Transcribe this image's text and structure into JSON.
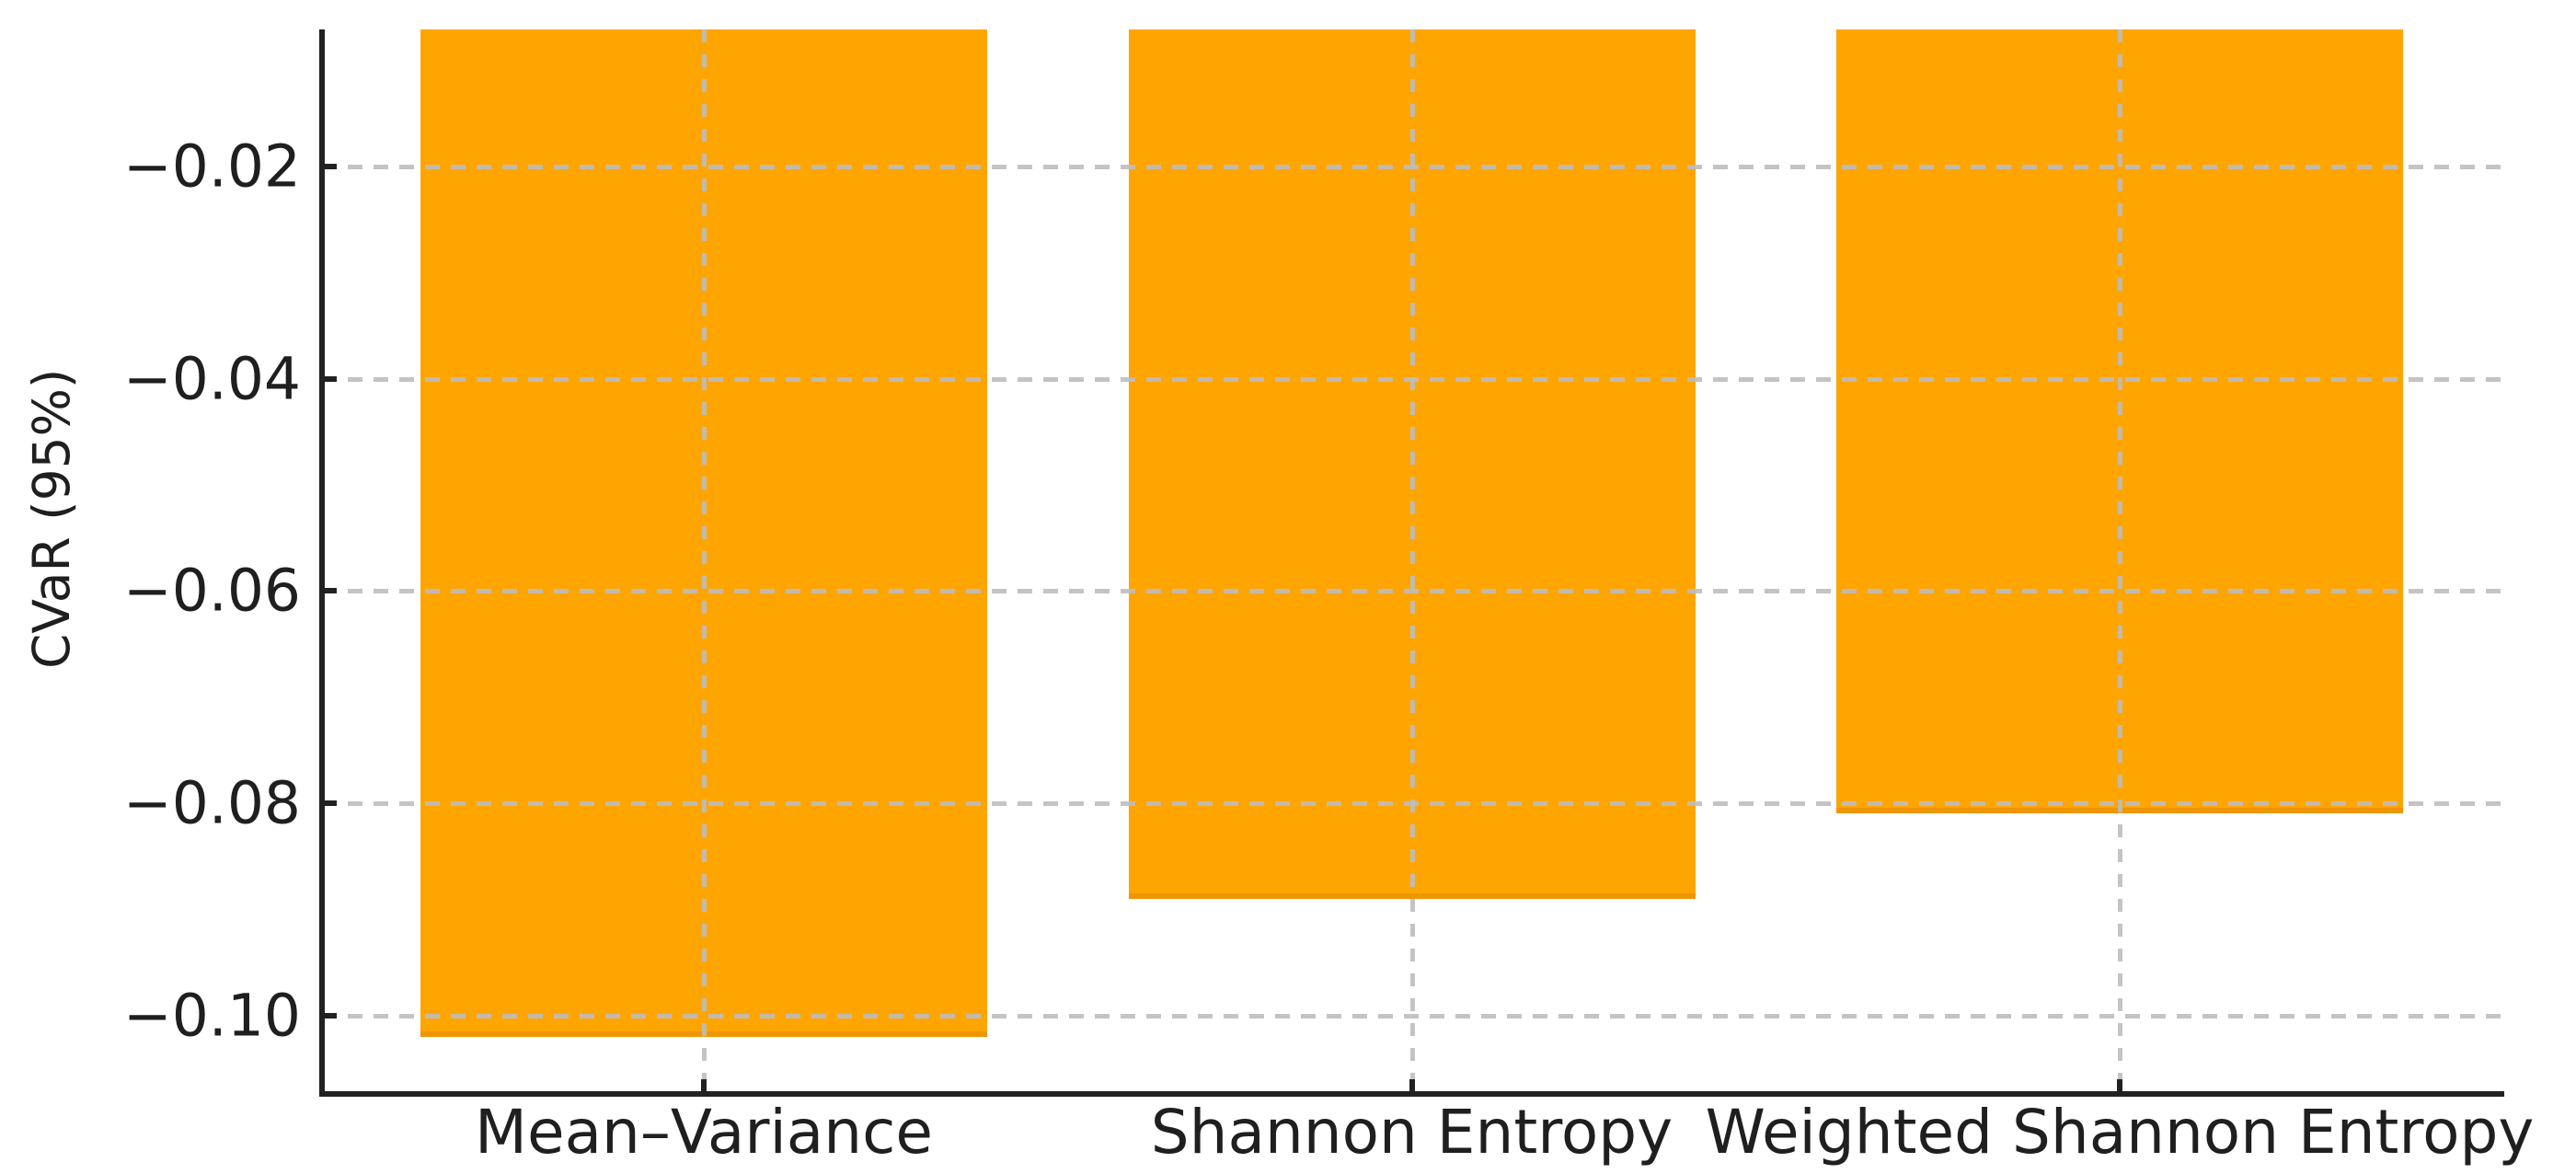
{
  "chart_data": {
    "type": "bar",
    "title": "",
    "ylabel": "CVaR (95%)",
    "xlabel": "",
    "categories": [
      "Mean–Variance",
      "Shannon Entropy",
      "Weighted Shannon Entropy"
    ],
    "values": [
      -0.102,
      -0.089,
      -0.081
    ],
    "baseline": 0,
    "ylim": [
      -0.1074,
      -0.0071
    ],
    "y_ticks": [
      -0.02,
      -0.04,
      -0.06,
      -0.08,
      -0.1
    ],
    "y_tick_labels": [
      "−0.02",
      "−0.04",
      "−0.06",
      "−0.08",
      "−0.10"
    ],
    "grid": {
      "horizontal": true,
      "vertical": true,
      "style": "dashed",
      "drawn_above_bars": true
    },
    "legend": "none",
    "colors": {
      "bar_fill": "#FFA502",
      "bar_edge": "#EE9604",
      "grid": "#BDBDBD",
      "axis": "#222222",
      "text": "#1F1F1F",
      "background": "#FFFFFF"
    }
  }
}
